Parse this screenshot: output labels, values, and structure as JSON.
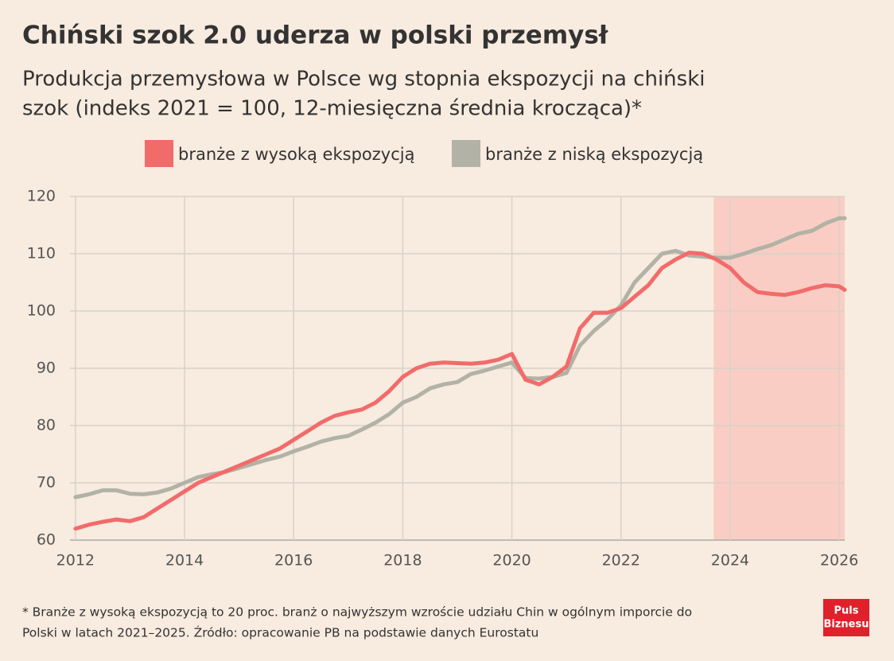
{
  "chart_data": {
    "type": "line",
    "title": "Chiński szok 2.0 uderza w polski przemysł",
    "subtitle": [
      "Produkcja przemysłowa w Polsce wg stopnia ekspozycji na chiński",
      "szok (indeks 2021 = 100, 12-miesięczna średnia krocząca)*"
    ],
    "x": [
      2012,
      2012.25,
      2012.5,
      2012.75,
      2013,
      2013.25,
      2013.5,
      2013.75,
      2014,
      2014.25,
      2014.5,
      2014.75,
      2015,
      2015.25,
      2015.5,
      2015.75,
      2016,
      2016.25,
      2016.5,
      2016.75,
      2017,
      2017.25,
      2017.5,
      2017.75,
      2018,
      2018.25,
      2018.5,
      2018.75,
      2019,
      2019.25,
      2019.5,
      2019.75,
      2020,
      2020.25,
      2020.5,
      2020.75,
      2021,
      2021.25,
      2021.5,
      2021.75,
      2022,
      2022.25,
      2022.5,
      2022.75,
      2023,
      2023.25,
      2023.5,
      2023.75,
      2024,
      2024.25,
      2024.5,
      2024.75,
      2025,
      2025.25,
      2025.5,
      2025.75,
      2026,
      2026.1
    ],
    "series": [
      {
        "name": "branże z wysoką ekspozycją",
        "color": "#f26b6b",
        "values": [
          62,
          62.7,
          63.2,
          63.6,
          63.3,
          64,
          65.5,
          67,
          68.5,
          70,
          71,
          72,
          73,
          74,
          75,
          76,
          77.5,
          79,
          80.5,
          81.7,
          82.3,
          82.8,
          84,
          86,
          88.5,
          90,
          90.8,
          91,
          90.9,
          90.8,
          91,
          91.5,
          92.5,
          88,
          87.2,
          88.5,
          90.3,
          97,
          99.7,
          99.7,
          100.5,
          102.5,
          104.5,
          107.5,
          109,
          110.2,
          110,
          109,
          107.5,
          105,
          103.3,
          103,
          102.8,
          103.3,
          104,
          104.5,
          104.3,
          103.7
        ]
      },
      {
        "name": "branże z niską ekspozycją",
        "color": "#b2b2a6",
        "values": [
          67.5,
          68,
          68.7,
          68.7,
          68.1,
          68,
          68.3,
          69,
          70,
          71,
          71.5,
          71.9,
          72.6,
          73.3,
          74,
          74.6,
          75.5,
          76.3,
          77.2,
          77.8,
          78.2,
          79.3,
          80.5,
          82,
          84,
          85,
          86.5,
          87.2,
          87.6,
          89,
          89.6,
          90.3,
          91,
          88.3,
          88.2,
          88.5,
          89.2,
          94,
          96.5,
          98.5,
          101,
          105,
          107.5,
          110,
          110.5,
          109.7,
          109.5,
          109.3,
          109.3,
          110,
          110.8,
          111.5,
          112.5,
          113.5,
          114,
          115.3,
          116.2,
          116.2
        ]
      }
    ],
    "xlim": [
      2011.9,
      2026.1
    ],
    "xticks": [
      2012,
      2014,
      2016,
      2018,
      2020,
      2022,
      2024,
      2026
    ],
    "ylim": [
      60,
      120
    ],
    "yticks": [
      60,
      70,
      80,
      90,
      100,
      110,
      120
    ],
    "grid": true,
    "highlight": {
      "x": [
        2023.7,
        2026.1
      ],
      "color": "#f9cdc3"
    },
    "footnote": [
      "* Branże z wysoką ekspozycją to 20 proc. branż o najwyższym wzroście udziału Chin w ogólnym imporcie do",
      "Polski w latach 2021–2025. Źródło: opracowanie PB na podstawie danych Eurostatu"
    ],
    "logo": [
      "Puls",
      "Biznesu"
    ]
  }
}
